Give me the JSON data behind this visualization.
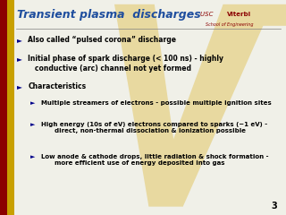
{
  "title": "Transient plasma  discharges",
  "title_color": "#1F4E9E",
  "bg_color": "#F0F0E8",
  "left_bar_color1": "#8B0000",
  "left_bar_color2": "#C8A000",
  "slide_number": "3",
  "usc_color": "#8B0000",
  "bullet_color": "#00008B",
  "text_color": "#000000",
  "viterbi_watermark_color": "#E8D9A0",
  "lines": [
    {
      "level": 0,
      "text": "Also called “pulsed corona” discharge"
    },
    {
      "level": 0,
      "text": "Initial phase of spark discharge (< 100 ns) - highly\n   conductive (arc) channel not yet formed"
    },
    {
      "level": 0,
      "text": "Characteristics"
    },
    {
      "level": 1,
      "text": "Multiple streamers of electrons - possible multiple ignition sites"
    },
    {
      "level": 1,
      "text": "High energy (10s of eV) electrons compared to sparks (~1 eV) -\n      direct, non-thermal dissociation & ionization possible"
    },
    {
      "level": 1,
      "text": "Low anode & cathode drops, little radiation & shock formation -\n      more efficient use of energy deposited into gas"
    }
  ]
}
